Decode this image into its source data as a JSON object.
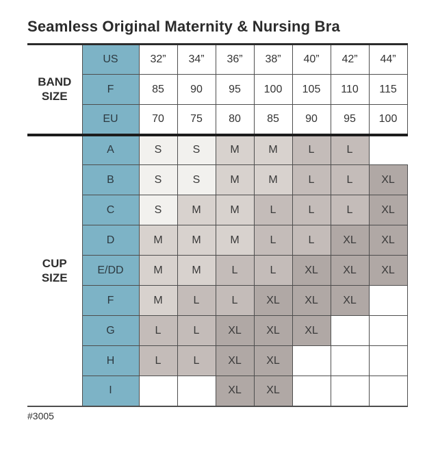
{
  "title": "Seamless Original Maternity & Nursing Bra",
  "footer": {
    "code": "#3005"
  },
  "colors": {
    "header_teal": "#7db3c6",
    "size_s": "#f2f1ee",
    "size_m": "#d8d2ce",
    "size_l": "#c4bcb9",
    "size_xl": "#b0a8a5",
    "empty_cell": "#ffffff",
    "grid_line": "#4d4d4d",
    "section_line": "#1c1c1c"
  },
  "chart_data": {
    "type": "table",
    "title": "Seamless Original Maternity & Nursing Bra",
    "header_color": "#7db3c6",
    "cell_color_key": {
      "S": "#f2f1ee",
      "M": "#d8d2ce",
      "L": "#c4bcb9",
      "XL": "#b0a8a5",
      "": "#ffffff"
    },
    "sections": [
      {
        "label": "BAND SIZE",
        "kind": "band",
        "rows": [
          {
            "header": "US",
            "cells": [
              "32”",
              "34”",
              "36”",
              "38”",
              "40”",
              "42”",
              "44”"
            ]
          },
          {
            "header": "F",
            "cells": [
              "85",
              "90",
              "95",
              "100",
              "105",
              "110",
              "115"
            ]
          },
          {
            "header": "EU",
            "cells": [
              "70",
              "75",
              "80",
              "85",
              "90",
              "95",
              "100"
            ]
          }
        ]
      },
      {
        "label": "CUP SIZE",
        "kind": "cup",
        "rows": [
          {
            "header": "A",
            "cells": [
              "S",
              "S",
              "M",
              "M",
              "L",
              "L",
              ""
            ]
          },
          {
            "header": "B",
            "cells": [
              "S",
              "S",
              "M",
              "M",
              "L",
              "L",
              "XL"
            ]
          },
          {
            "header": "C",
            "cells": [
              "S",
              "M",
              "M",
              "L",
              "L",
              "L",
              "XL"
            ]
          },
          {
            "header": "D",
            "cells": [
              "M",
              "M",
              "M",
              "L",
              "L",
              "XL",
              "XL"
            ]
          },
          {
            "header": "E/DD",
            "cells": [
              "M",
              "M",
              "L",
              "L",
              "XL",
              "XL",
              "XL"
            ]
          },
          {
            "header": "F",
            "cells": [
              "M",
              "L",
              "L",
              "XL",
              "XL",
              "XL",
              ""
            ]
          },
          {
            "header": "G",
            "cells": [
              "L",
              "L",
              "XL",
              "XL",
              "XL",
              "",
              ""
            ]
          },
          {
            "header": "H",
            "cells": [
              "L",
              "L",
              "XL",
              "XL",
              "",
              "",
              ""
            ]
          },
          {
            "header": "I",
            "cells": [
              "",
              "",
              "XL",
              "XL",
              "",
              "",
              ""
            ]
          }
        ]
      }
    ]
  }
}
